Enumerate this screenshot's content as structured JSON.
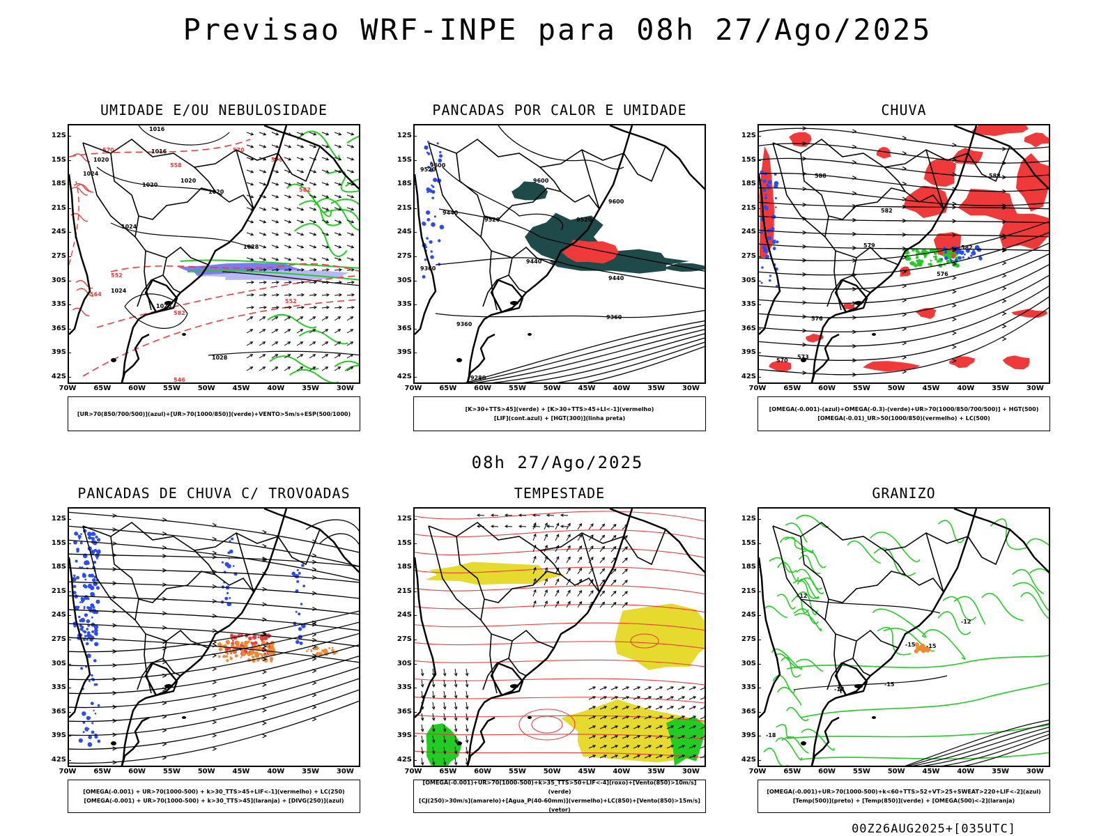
{
  "title": "Previsao WRF-INPE  para 08h 27/Ago/2025",
  "mid_title": "08h 27/Ago/2025",
  "footer": "00Z26AUG2025+[035UTC]",
  "lat_ticks": [
    "12S",
    "15S",
    "18S",
    "21S",
    "24S",
    "27S",
    "30S",
    "33S",
    "36S",
    "39S",
    "42S"
  ],
  "lon_ticks": [
    "70W",
    "65W",
    "60W",
    "55W",
    "50W",
    "45W",
    "40W",
    "35W",
    "30W"
  ],
  "colors": {
    "rh_blue": "#7a7cf0",
    "rh_green": "#22cc22",
    "red": "#f03a3a",
    "dark_teal": "#1e4a4a",
    "blue": "#2a4cf0",
    "orange": "#f08a30",
    "yellow": "#e6da2e"
  },
  "panels": [
    {
      "title": "UMIDADE E/OU NEBULOSIDADE",
      "legend": [
        "[UR>70(850/700/500)](azul)+[UR>70(1000/850)](verde)+VENTO>5m/s+ESP(500/1000)"
      ],
      "labels": [
        "1016",
        "1020",
        "1016",
        "1020",
        "1024",
        "1020",
        "1020",
        "1024",
        "1028",
        "1024",
        "1028",
        "1028",
        "570",
        "570",
        "576",
        "582",
        "558",
        "552",
        "564",
        "552",
        "582",
        "546"
      ]
    },
    {
      "title": "PANCADAS POR CALOR E UMIDADE",
      "legend": [
        "[K>30+TTS>45](verde) + [K>30+TTS>45+LI<-1](vermelho)",
        "[LIF](cont.azul) + [HGT(300)](linha preta)"
      ],
      "labels": [
        "9600",
        "9520",
        "9600",
        "9600",
        "9440",
        "9520",
        "9520",
        "9440",
        "9440",
        "9360",
        "9360",
        "9280",
        "9360"
      ]
    },
    {
      "title": "CHUVA",
      "legend": [
        "[OMEGA(-0.001)-(azul)+OMEGA(-0.3)-(verde)+UR>70(1000/850/700/500)] + HGT(500)",
        "[OMEGA(-0.01)_UR>50(1000/850)(vermelho) + LC(500)"
      ],
      "labels": [
        "588",
        "588",
        "582",
        "579",
        "576",
        "573",
        "570",
        "582",
        "576"
      ]
    },
    {
      "title": "PANCADAS DE CHUVA C/ TROVOADAS",
      "legend": [
        "[OMEGA(-0.001) + UR>70(1000-500) + k>30_TTS>45+LIF<-1](vermelho) + LC(250)",
        "[OMEGA(-0.001) + UR>70(1000-500) + k>30_TTS>45](laranja) + [DIVG(250)](azul)"
      ],
      "labels": []
    },
    {
      "title": "TEMPESTADE",
      "legend": [
        "[OMEGA(-0.001)+UR>70(1000-500)+k>35_TTS>50+LIF<-4](roxo)+[Vento(850)>10m/s](verde)",
        "[CJ(250)>30m/s](amarelo)+[Agua_P(40-60mm)](vermelho)+LC(850)+[Vento(850)>15m/s](vetor)"
      ],
      "labels": []
    },
    {
      "title": "GRANIZO",
      "legend": [
        "[OMEGA(-0.001)+UR>70(1000-500)+k<60+TTS>52+VT>25+SWEAT>220+LIF<-2](azul)",
        "[Temp(500)](preto) + [Temp(850)](verde) + [OMEGA(500)<-2](laranja)"
      ],
      "labels": [
        "-12",
        "-12",
        "-15",
        "-18",
        "-18",
        "-15",
        "-15"
      ]
    }
  ]
}
